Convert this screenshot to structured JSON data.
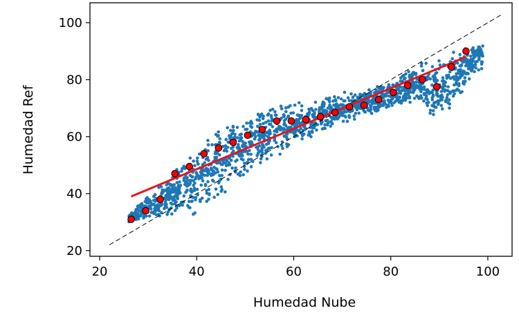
{
  "chart_data": {
    "type": "scatter",
    "title": "",
    "xlabel": "Humedad Nube",
    "ylabel": "Humedad Ref",
    "xlim": [
      18,
      105
    ],
    "ylim": [
      18,
      107
    ],
    "x_ticks": [
      20,
      40,
      60,
      80,
      100
    ],
    "y_ticks": [
      20,
      40,
      60,
      80,
      100
    ],
    "grid": false,
    "legend": "none",
    "colors": {
      "scatter": "#1f77b4",
      "binned_means": "#ff0000",
      "fit_line": "#e6141e",
      "identity_line": "#000000"
    },
    "identity_line": {
      "x": [
        22,
        103
      ],
      "y": [
        22,
        103
      ]
    },
    "fit_line": {
      "x": [
        26.5,
        95.5
      ],
      "y": [
        39,
        88
      ]
    },
    "binned_means": {
      "x": [
        26.5,
        29.5,
        32.5,
        35.5,
        38.5,
        41.5,
        44.5,
        47.5,
        50.5,
        53.5,
        56.5,
        59.5,
        62.5,
        65.5,
        68.5,
        71.5,
        74.5,
        77.5,
        80.5,
        83.5,
        86.5,
        89.5,
        92.5,
        95.5
      ],
      "y": [
        31,
        34,
        38,
        47,
        49.5,
        54,
        56,
        58,
        60.5,
        62.5,
        65.5,
        65.5,
        66,
        67,
        68.5,
        70.5,
        71,
        73,
        75.5,
        78,
        80,
        77.5,
        84.5,
        90
      ]
    },
    "scatter_envelope": {
      "x": [
        26,
        30,
        35,
        40,
        45,
        50,
        55,
        60,
        65,
        70,
        75,
        80,
        85,
        90,
        95,
        99
      ],
      "y_low": [
        30,
        31,
        32,
        32,
        38,
        46,
        50,
        56,
        61,
        64,
        67,
        70,
        72,
        65,
        75,
        84
      ],
      "y_high": [
        33,
        40,
        47,
        57,
        64,
        68,
        73,
        72,
        73,
        76,
        77,
        79,
        86,
        88,
        92,
        93
      ]
    }
  }
}
